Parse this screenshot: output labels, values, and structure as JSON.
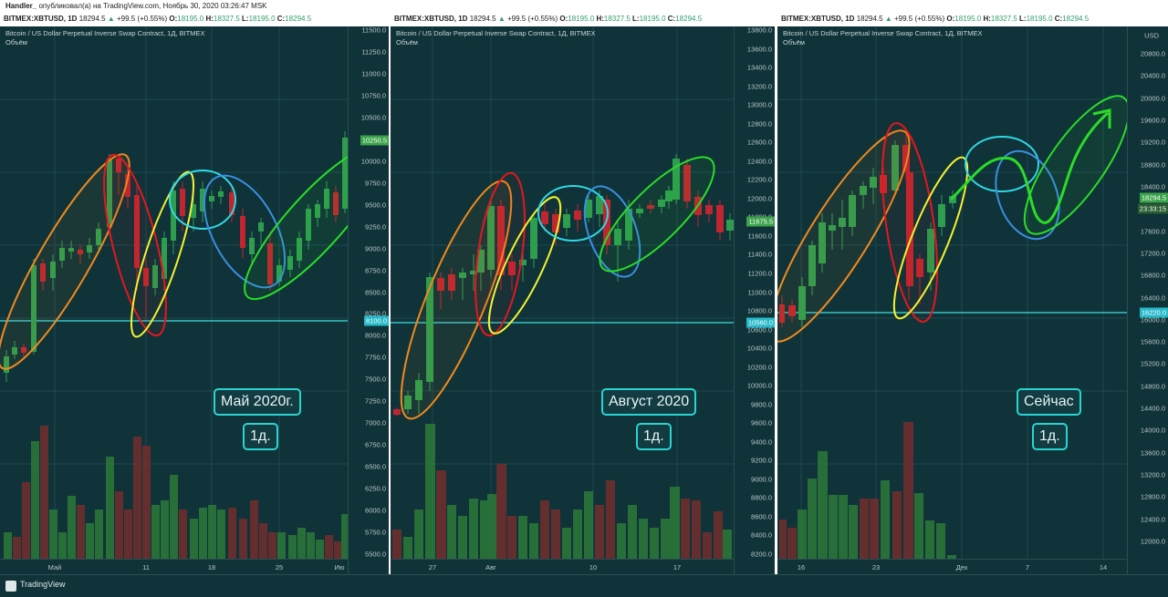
{
  "header": {
    "author": "Handler_",
    "published_text": "опубликовал(а) на TradingView.com, Ноябрь 30, 2020 03:26:47 MSK"
  },
  "top_quote": {
    "symbol": "BITMEX:XBTUSD, 1D",
    "price": "18294.5",
    "change": "+99.5 (+0.55%)",
    "o_label": "O:",
    "o": "18195.0",
    "h_label": "H:",
    "h": "18327.5",
    "l_label": "L:",
    "l": "18195.0",
    "c_label": "C:",
    "c": "18294.5"
  },
  "footer": {
    "brand": "TradingView"
  },
  "panels": [
    {
      "subtitle": "Bitcoin / US Dollar Perpetual Inverse Swap Contract, 1Д, BITMEX",
      "volume_label": "Объём",
      "period_label": "Май 2020г.",
      "interval_label": "1д.",
      "support_level": "8100.0",
      "last_price": "10250.5",
      "y_ticks": [
        "11500.0",
        "11250.0",
        "11000.0",
        "10750.0",
        "10500.0",
        "10250.0",
        "10000.0",
        "9750.0",
        "9500.0",
        "9250.0",
        "9000.0",
        "8750.0",
        "8500.0",
        "8250.0",
        "8000.0",
        "7750.0",
        "7500.0",
        "7250.0",
        "7000.0",
        "6750.0",
        "6500.0",
        "6250.0",
        "6000.0",
        "5750.0",
        "5500.0"
      ],
      "x_ticks": [
        "Май",
        "11",
        "18",
        "25",
        "Ию"
      ],
      "colors": {
        "up": "#2e9e4e",
        "down": "#c0262f"
      }
    },
    {
      "subtitle": "Bitcoin / US Dollar Perpetual Inverse Swap Contract, 1Д, BITMEX",
      "volume_label": "Объём",
      "period_label": "Август 2020",
      "interval_label": "1д.",
      "support_level": "10560.0",
      "last_price": "11675.5",
      "y_ticks": [
        "13800.0",
        "13600.0",
        "13400.0",
        "13200.0",
        "13000.0",
        "12800.0",
        "12600.0",
        "12400.0",
        "12200.0",
        "12000.0",
        "11800.0",
        "11600.0",
        "11400.0",
        "11200.0",
        "11000.0",
        "10800.0",
        "10600.0",
        "10400.0",
        "10200.0",
        "10000.0",
        "9800.0",
        "9600.0",
        "9400.0",
        "9200.0",
        "9000.0",
        "8800.0",
        "8600.0",
        "8400.0",
        "8200.0"
      ],
      "x_ticks": [
        "27",
        "Авг",
        "10",
        "17"
      ]
    },
    {
      "subtitle": "Bitcoin / US Dollar Perpetual Inverse Swap Contract, 1Д, BITMEX",
      "volume_label": "Объём",
      "period_label": "Сейчас",
      "interval_label": "1д.",
      "support_level": "16220.0",
      "last_price": "18294.5",
      "countdown": "23:33:15",
      "currency": "USD",
      "y_ticks": [
        "20800.0",
        "20400.0",
        "20000.0",
        "19600.0",
        "19200.0",
        "18800.0",
        "18400.0",
        "18000.0",
        "17600.0",
        "17200.0",
        "16800.0",
        "16400.0",
        "16000.0",
        "15600.0",
        "15200.0",
        "14800.0",
        "14400.0",
        "14000.0",
        "13600.0",
        "13200.0",
        "12800.0",
        "12400.0",
        "12000.0"
      ],
      "x_ticks": [
        "16",
        "23",
        "Дек",
        "7",
        "14"
      ]
    }
  ]
}
